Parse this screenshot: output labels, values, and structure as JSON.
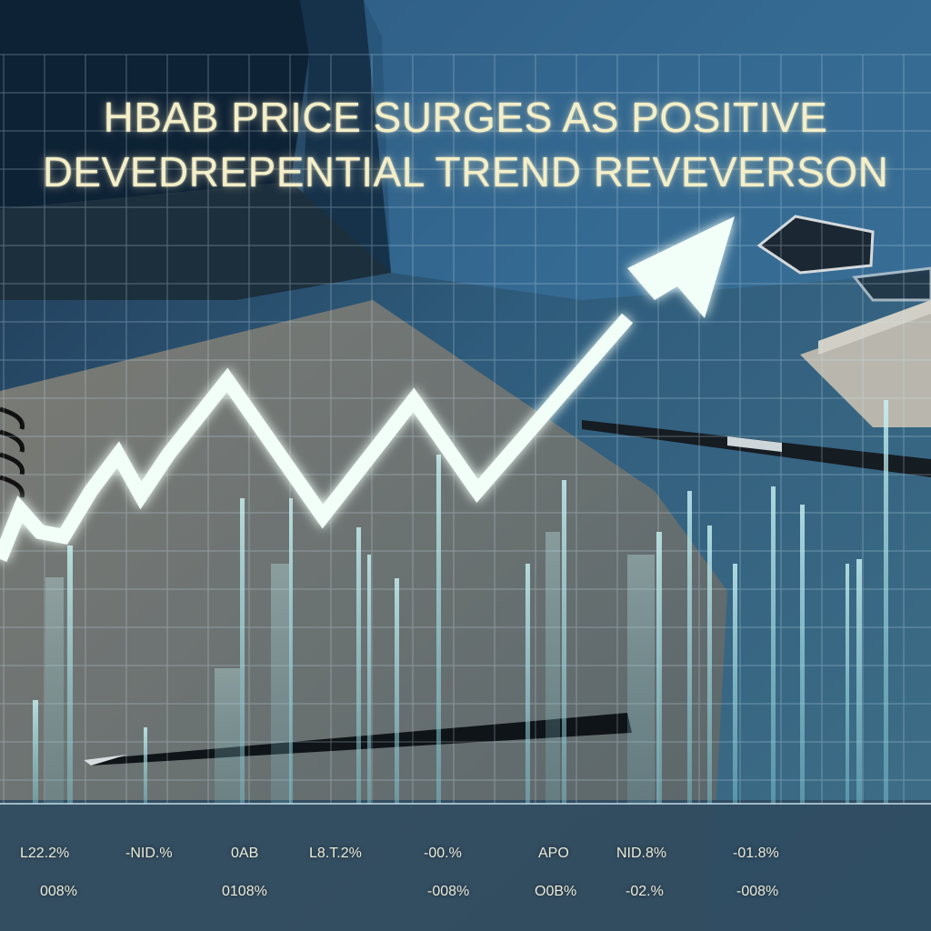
{
  "headline": {
    "line1": "HBAB PRICE SURGES AS POSITIVE",
    "line2": "DEVEDREPENTIAL TREND REVEVERSON"
  },
  "tickers": {
    "row1": [
      "L22.2%",
      "-NID.%",
      "0AB",
      "L8.T.2%",
      "-00.%",
      "APO",
      "NID.8%",
      "-01.8%"
    ],
    "row2": [
      "008%",
      "0108%",
      "-008%",
      "O0B%",
      "-02.%",
      "-008%"
    ]
  },
  "colors": {
    "trend_line": "#f2fff8",
    "bars": "#9fe6ea",
    "grid": "#cfe6f3",
    "headline": "#f4efc8"
  }
}
